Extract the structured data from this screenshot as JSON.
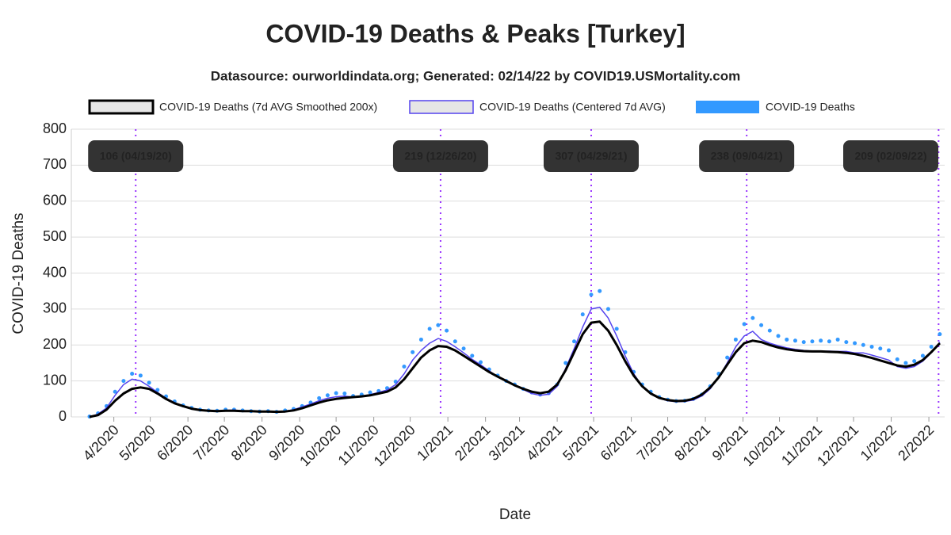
{
  "chart_data": {
    "type": "line",
    "title": "COVID-19 Deaths & Peaks [Turkey]",
    "subtitle": "Datasource: ourworldindata.org; Generated: 02/14/22 by COVID19.USMortality.com",
    "x_label": "Date",
    "y_label": "COVID-19 Deaths",
    "xlim": [
      "2020-02-26",
      "2022-02-14"
    ],
    "ylim": [
      0,
      800
    ],
    "yticks": [
      0,
      100,
      200,
      300,
      400,
      500,
      600,
      700,
      800
    ],
    "grid": true,
    "xticks": [
      {
        "value": "2020-04-01",
        "label": "4/2020"
      },
      {
        "value": "2020-05-01",
        "label": "5/2020"
      },
      {
        "value": "2020-06-01",
        "label": "6/2020"
      },
      {
        "value": "2020-07-01",
        "label": "7/2020"
      },
      {
        "value": "2020-08-01",
        "label": "8/2020"
      },
      {
        "value": "2020-09-01",
        "label": "9/2020"
      },
      {
        "value": "2020-10-01",
        "label": "10/2020"
      },
      {
        "value": "2020-11-01",
        "label": "11/2020"
      },
      {
        "value": "2020-12-01",
        "label": "12/2020"
      },
      {
        "value": "2021-01-01",
        "label": "1/2021"
      },
      {
        "value": "2021-02-01",
        "label": "2/2021"
      },
      {
        "value": "2021-03-01",
        "label": "3/2021"
      },
      {
        "value": "2021-04-01",
        "label": "4/2021"
      },
      {
        "value": "2021-05-01",
        "label": "5/2021"
      },
      {
        "value": "2021-06-01",
        "label": "6/2021"
      },
      {
        "value": "2021-07-01",
        "label": "7/2021"
      },
      {
        "value": "2021-08-01",
        "label": "8/2021"
      },
      {
        "value": "2021-09-01",
        "label": "9/2021"
      },
      {
        "value": "2021-10-01",
        "label": "10/2021"
      },
      {
        "value": "2021-11-01",
        "label": "11/2021"
      },
      {
        "value": "2021-12-01",
        "label": "12/2021"
      },
      {
        "value": "2022-01-01",
        "label": "1/2022"
      },
      {
        "value": "2022-02-01",
        "label": "2/2022"
      }
    ],
    "x": [
      "2020-03-12",
      "2020-03-19",
      "2020-03-26",
      "2020-04-02",
      "2020-04-09",
      "2020-04-16",
      "2020-04-23",
      "2020-04-30",
      "2020-05-07",
      "2020-05-14",
      "2020-05-21",
      "2020-05-28",
      "2020-06-04",
      "2020-06-11",
      "2020-06-18",
      "2020-06-25",
      "2020-07-02",
      "2020-07-09",
      "2020-07-16",
      "2020-07-23",
      "2020-07-30",
      "2020-08-06",
      "2020-08-13",
      "2020-08-20",
      "2020-08-27",
      "2020-09-03",
      "2020-09-10",
      "2020-09-17",
      "2020-09-24",
      "2020-10-01",
      "2020-10-08",
      "2020-10-15",
      "2020-10-22",
      "2020-10-29",
      "2020-11-05",
      "2020-11-12",
      "2020-11-19",
      "2020-11-26",
      "2020-12-03",
      "2020-12-10",
      "2020-12-17",
      "2020-12-24",
      "2020-12-31",
      "2021-01-07",
      "2021-01-14",
      "2021-01-21",
      "2021-01-28",
      "2021-02-04",
      "2021-02-11",
      "2021-02-18",
      "2021-02-25",
      "2021-03-04",
      "2021-03-11",
      "2021-03-18",
      "2021-03-25",
      "2021-04-01",
      "2021-04-08",
      "2021-04-15",
      "2021-04-22",
      "2021-04-29",
      "2021-05-06",
      "2021-05-13",
      "2021-05-20",
      "2021-05-27",
      "2021-06-03",
      "2021-06-10",
      "2021-06-17",
      "2021-06-24",
      "2021-07-01",
      "2021-07-08",
      "2021-07-15",
      "2021-07-22",
      "2021-07-29",
      "2021-08-05",
      "2021-08-12",
      "2021-08-19",
      "2021-08-26",
      "2021-09-02",
      "2021-09-09",
      "2021-09-16",
      "2021-09-23",
      "2021-09-30",
      "2021-10-07",
      "2021-10-14",
      "2021-10-21",
      "2021-10-28",
      "2021-11-04",
      "2021-11-11",
      "2021-11-18",
      "2021-11-25",
      "2021-12-02",
      "2021-12-09",
      "2021-12-16",
      "2021-12-23",
      "2021-12-30",
      "2022-01-06",
      "2022-01-13",
      "2022-01-20",
      "2022-01-27",
      "2022-02-03",
      "2022-02-10"
    ],
    "series": [
      {
        "name": "COVID-19 Deaths",
        "color": "#3399ff",
        "mark": "dots",
        "values": [
          1,
          10,
          30,
          70,
          100,
          120,
          115,
          95,
          75,
          57,
          43,
          32,
          25,
          20,
          18,
          17,
          20,
          20,
          18,
          16,
          15,
          16,
          14,
          18,
          22,
          30,
          40,
          52,
          60,
          66,
          65,
          58,
          62,
          68,
          72,
          80,
          98,
          140,
          180,
          215,
          245,
          255,
          240,
          210,
          190,
          170,
          152,
          132,
          115,
          100,
          90,
          78,
          68,
          62,
          66,
          90,
          150,
          210,
          285,
          340,
          350,
          300,
          245,
          180,
          125,
          90,
          70,
          55,
          48,
          44,
          45,
          50,
          62,
          85,
          120,
          165,
          215,
          258,
          275,
          255,
          240,
          225,
          215,
          212,
          208,
          210,
          212,
          210,
          215,
          208,
          205,
          200,
          195,
          190,
          185,
          160,
          150,
          155,
          170,
          195,
          230
        ]
      },
      {
        "name": "COVID-19 Deaths (Centered 7d AVG)",
        "color": "#5544ee",
        "mark": "line",
        "values": [
          0,
          8,
          25,
          60,
          90,
          105,
          100,
          85,
          68,
          52,
          40,
          30,
          24,
          20,
          18,
          17,
          18,
          19,
          17,
          16,
          15,
          15,
          14,
          16,
          20,
          28,
          36,
          45,
          52,
          56,
          58,
          55,
          58,
          62,
          68,
          75,
          90,
          120,
          158,
          185,
          205,
          218,
          210,
          195,
          178,
          160,
          145,
          128,
          112,
          100,
          88,
          76,
          65,
          60,
          63,
          85,
          135,
          190,
          250,
          300,
          305,
          275,
          225,
          170,
          120,
          85,
          65,
          52,
          45,
          42,
          43,
          47,
          58,
          78,
          110,
          150,
          195,
          225,
          238,
          215,
          205,
          198,
          192,
          188,
          185,
          183,
          182,
          183,
          182,
          182,
          178,
          178,
          172,
          165,
          158,
          140,
          135,
          140,
          155,
          178,
          208
        ]
      },
      {
        "name": "COVID-19 Deaths (7d AVG Smoothed 200x)",
        "color": "#000000",
        "mark": "line",
        "values": [
          0,
          5,
          20,
          45,
          65,
          78,
          82,
          78,
          65,
          50,
          38,
          30,
          23,
          19,
          17,
          16,
          17,
          17,
          16,
          16,
          15,
          15,
          14,
          15,
          18,
          24,
          32,
          40,
          46,
          50,
          53,
          55,
          57,
          60,
          65,
          70,
          82,
          105,
          135,
          165,
          185,
          197,
          195,
          185,
          170,
          155,
          140,
          125,
          112,
          100,
          88,
          78,
          70,
          66,
          70,
          90,
          130,
          180,
          230,
          262,
          265,
          240,
          200,
          155,
          115,
          85,
          65,
          53,
          47,
          44,
          45,
          50,
          62,
          82,
          110,
          145,
          180,
          205,
          212,
          208,
          200,
          193,
          188,
          185,
          183,
          182,
          182,
          181,
          180,
          178,
          175,
          170,
          164,
          157,
          150,
          143,
          140,
          145,
          158,
          180,
          205
        ]
      }
    ],
    "legend_order": [
      2,
      1,
      0
    ],
    "peaks": [
      {
        "x": "2020-04-19",
        "label": "106 (04/19/20)"
      },
      {
        "x": "2020-12-26",
        "label": "219 (12/26/20)"
      },
      {
        "x": "2021-04-29",
        "label": "307 (04/29/21)"
      },
      {
        "x": "2021-09-04",
        "label": "238 (09/04/21)"
      },
      {
        "x": "2022-02-09",
        "label": "209 (02/09/22)"
      }
    ],
    "peak_color": "#9933ff"
  }
}
